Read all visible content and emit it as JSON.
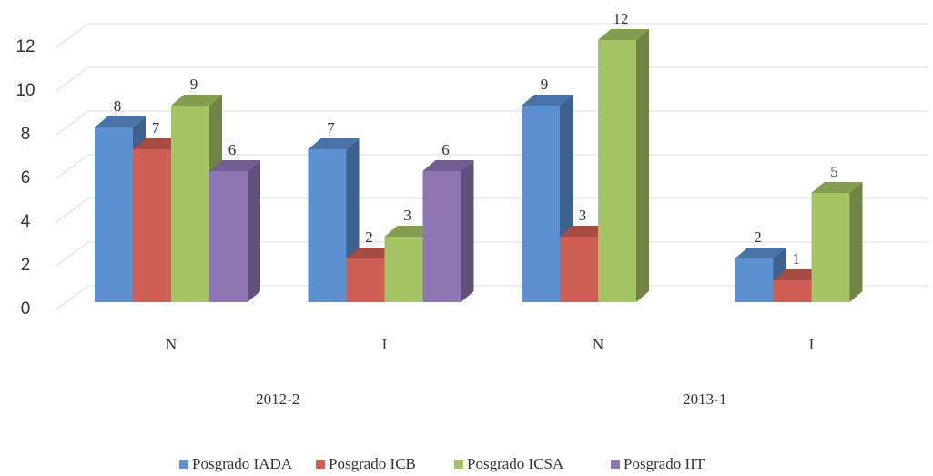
{
  "chart_data": {
    "type": "bar3d",
    "categories": [
      "N",
      "I",
      "N",
      "I"
    ],
    "group_labels": [
      "2012-2",
      "2013-1"
    ],
    "series": [
      {
        "name": "Posgrado IADA",
        "color": "#5b8fcf",
        "values": [
          8,
          7,
          9,
          2
        ]
      },
      {
        "name": "Posgrado ICB",
        "color": "#cf5f55",
        "values": [
          7,
          2,
          3,
          1
        ]
      },
      {
        "name": "Posgrado ICSA",
        "color": "#a5c464",
        "values": [
          9,
          3,
          12,
          5
        ]
      },
      {
        "name": "Posgrado IIT",
        "color": "#8e76b5",
        "values": [
          6,
          6,
          null,
          null
        ]
      }
    ],
    "ylim": [
      0,
      12
    ],
    "yticks": [
      0,
      2,
      4,
      6,
      8,
      10,
      12
    ],
    "grid": true,
    "legend": "bottom"
  }
}
